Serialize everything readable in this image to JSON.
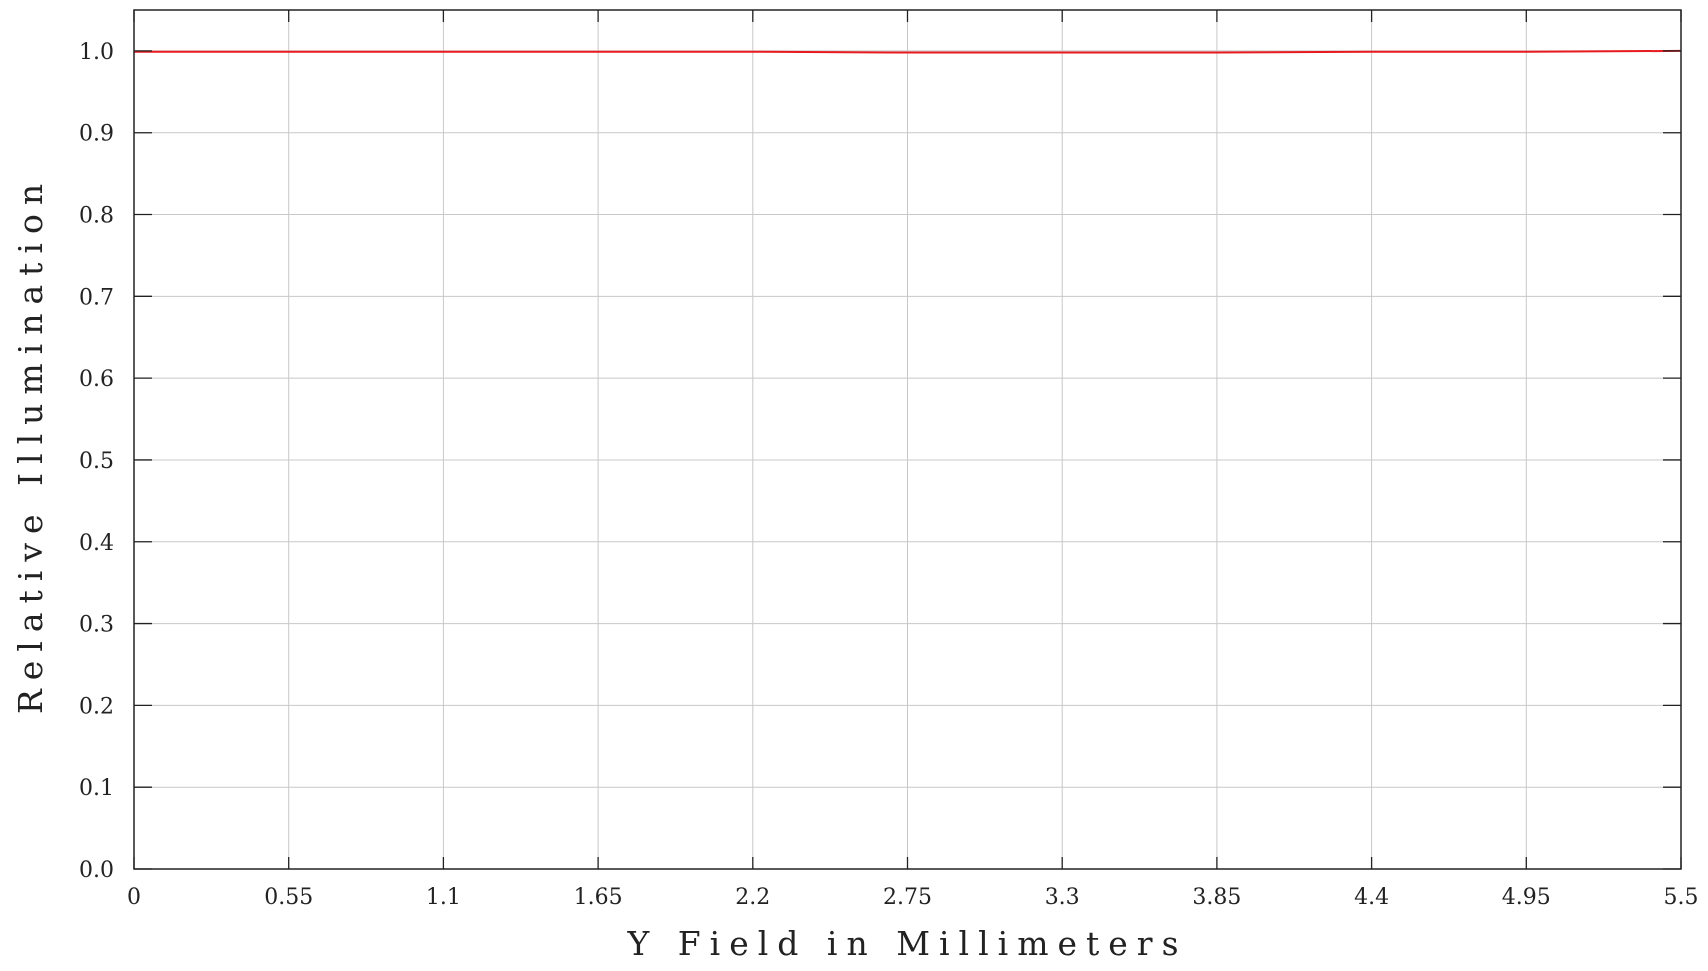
{
  "chart_data": {
    "type": "line",
    "title": "",
    "xlabel": "Y Field in Millimeters",
    "ylabel": "Relative Illumination",
    "xlim": [
      0,
      5.5
    ],
    "ylim": [
      0,
      1.05
    ],
    "grid": true,
    "x_ticks": [
      "0",
      "0.55",
      "1.1",
      "1.65",
      "2.2",
      "2.75",
      "3.3",
      "3.85",
      "4.4",
      "4.95",
      "5.5"
    ],
    "y_ticks": [
      "0.0",
      "0.1",
      "0.2",
      "0.3",
      "0.4",
      "0.5",
      "0.6",
      "0.7",
      "0.8",
      "0.9",
      "1.0"
    ],
    "series": [
      {
        "color": "#e8191f",
        "x": [
          0,
          0.55,
          1.1,
          1.65,
          2.2,
          2.75,
          3.3,
          3.85,
          4.4,
          4.95,
          5.5
        ],
        "y": [
          0.999,
          0.999,
          0.999,
          0.999,
          0.999,
          0.998,
          0.998,
          0.998,
          0.999,
          0.999,
          1.0
        ]
      }
    ]
  },
  "colors": {
    "grid": "#c8c8c8",
    "frame": "#222222",
    "background": "#ffffff"
  }
}
